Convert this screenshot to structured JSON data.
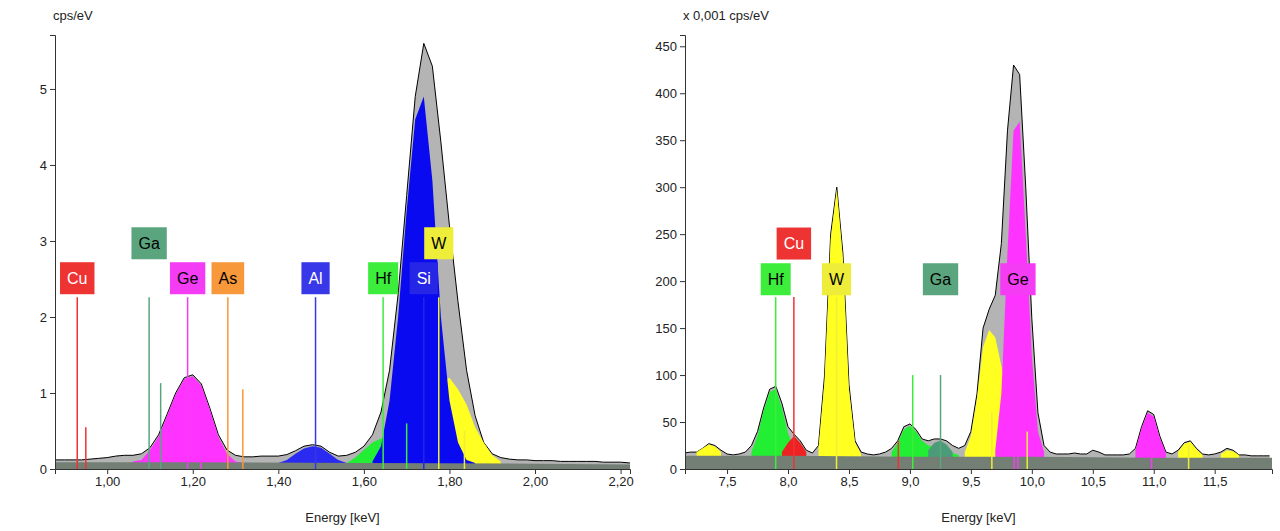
{
  "chart_data": [
    {
      "type": "area",
      "y_label": "cps/eV",
      "x_label": "Energy [keV]",
      "xlim": [
        0.878,
        2.222
      ],
      "xticks": [
        {
          "value": 1.0,
          "label": "1,00"
        },
        {
          "value": 1.2,
          "label": "1,20"
        },
        {
          "value": 1.4,
          "label": "1,40"
        },
        {
          "value": 1.6,
          "label": "1,60"
        },
        {
          "value": 1.8,
          "label": "1,80"
        },
        {
          "value": 2.0,
          "label": "2,00"
        },
        {
          "value": 2.2,
          "label": "2,20"
        }
      ],
      "ylim": [
        0,
        5.71
      ],
      "yticks": [
        0,
        1,
        2,
        3,
        4,
        5
      ],
      "series": [
        {
          "color": "#b4b4b4",
          "line_style": "solid",
          "x": [
            0.88,
            0.9,
            0.92,
            0.94,
            0.96,
            0.98,
            1.0,
            1.02,
            1.04,
            1.06,
            1.08,
            1.1,
            1.12,
            1.14,
            1.16,
            1.18,
            1.2,
            1.22,
            1.24,
            1.26,
            1.28,
            1.3,
            1.32,
            1.34,
            1.36,
            1.38,
            1.4,
            1.42,
            1.44,
            1.46,
            1.48,
            1.5,
            1.52,
            1.54,
            1.56,
            1.58,
            1.6,
            1.62,
            1.64,
            1.66,
            1.68,
            1.7,
            1.72,
            1.74,
            1.76,
            1.78,
            1.8,
            1.82,
            1.84,
            1.86,
            1.88,
            1.9,
            1.92,
            1.94,
            1.96,
            1.98,
            2.0,
            2.02,
            2.04,
            2.06,
            2.08,
            2.1,
            2.12,
            2.14,
            2.16,
            2.18,
            2.2,
            2.22,
            2.24
          ],
          "values": [
            0.12,
            0.12,
            0.12,
            0.12,
            0.13,
            0.14,
            0.15,
            0.17,
            0.18,
            0.18,
            0.2,
            0.28,
            0.45,
            0.72,
            1.0,
            1.2,
            1.24,
            1.12,
            0.8,
            0.45,
            0.25,
            0.18,
            0.16,
            0.16,
            0.17,
            0.17,
            0.17,
            0.19,
            0.24,
            0.3,
            0.32,
            0.3,
            0.22,
            0.17,
            0.18,
            0.22,
            0.3,
            0.45,
            0.75,
            1.3,
            2.3,
            3.6,
            4.9,
            5.6,
            5.3,
            4.3,
            3.2,
            2.2,
            1.3,
            0.7,
            0.35,
            0.2,
            0.15,
            0.13,
            0.12,
            0.12,
            0.11,
            0.11,
            0.11,
            0.1,
            0.1,
            0.1,
            0.1,
            0.1,
            0.09,
            0.09,
            0.09,
            0.08,
            0.08
          ]
        },
        {
          "color": "#ff33ff",
          "x": [
            1.06,
            1.08,
            1.1,
            1.12,
            1.14,
            1.16,
            1.18,
            1.2,
            1.22,
            1.24,
            1.26,
            1.28,
            1.3,
            1.32
          ],
          "values": [
            0.1,
            0.12,
            0.25,
            0.42,
            0.7,
            0.98,
            1.18,
            1.22,
            1.1,
            0.78,
            0.42,
            0.2,
            0.1,
            0.08
          ]
        },
        {
          "color": "#2a2af0",
          "x": [
            1.4,
            1.42,
            1.44,
            1.46,
            1.48,
            1.5,
            1.52,
            1.54,
            1.56
          ],
          "values": [
            0.08,
            0.12,
            0.2,
            0.27,
            0.3,
            0.28,
            0.2,
            0.12,
            0.08
          ]
        },
        {
          "color": "#22ee33",
          "x": [
            1.56,
            1.58,
            1.6,
            1.62,
            1.64,
            1.66,
            1.68,
            1.7,
            1.72
          ],
          "values": [
            0.08,
            0.15,
            0.25,
            0.35,
            0.4,
            0.4,
            0.3,
            0.15,
            0.08
          ]
        },
        {
          "color": "#ffff22",
          "x": [
            1.7,
            1.72,
            1.74,
            1.76,
            1.78,
            1.8,
            1.82,
            1.84,
            1.86,
            1.88,
            1.9,
            1.92
          ],
          "values": [
            0.1,
            0.3,
            0.6,
            0.9,
            1.15,
            1.2,
            1.05,
            0.85,
            0.55,
            0.35,
            0.18,
            0.1
          ]
        },
        {
          "color": "#0a0af0",
          "x": [
            1.62,
            1.64,
            1.66,
            1.68,
            1.7,
            1.72,
            1.74,
            1.76,
            1.78,
            1.8,
            1.82,
            1.84,
            1.86
          ],
          "values": [
            0.1,
            0.3,
            0.9,
            2.0,
            3.4,
            4.6,
            4.9,
            3.8,
            2.0,
            0.9,
            0.35,
            0.12,
            0.08
          ]
        },
        {
          "color": "#737f75",
          "x": [
            0.88,
            1.2,
            1.6,
            2.0,
            2.24
          ],
          "values": [
            0.09,
            0.09,
            0.08,
            0.07,
            0.06
          ]
        }
      ],
      "annotations": [
        {
          "text": "Cu",
          "x": 0.93,
          "y": 2.51,
          "color": "#ee3333",
          "line_x": [
            0.93,
            0.95
          ],
          "line_y": [
            2.26,
            0.55
          ]
        },
        {
          "text": "Ga",
          "x": 1.098,
          "y": 2.97,
          "color": "#5aa57e",
          "line_x": [
            1.098,
            1.125
          ],
          "line_y": [
            2.26,
            1.13
          ]
        },
        {
          "text": "Ge",
          "x": 1.188,
          "y": 2.51,
          "color": "#f43cf4",
          "line_x": [
            1.188,
            1.219
          ],
          "line_y": [
            2.26,
            0.2
          ]
        },
        {
          "text": "As",
          "x": 1.282,
          "y": 2.51,
          "color": "#f7983a",
          "line_x": [
            1.282,
            1.317
          ],
          "line_y": [
            2.26,
            1.05
          ]
        },
        {
          "text": "Al",
          "x": 1.487,
          "y": 2.51,
          "color": "#3838e8",
          "line_x": [
            1.487
          ],
          "line_y": [
            2.26
          ]
        },
        {
          "text": "Hf",
          "x": 1.645,
          "y": 2.51,
          "color": "#3ced3c",
          "line_x": [
            1.645,
            1.7
          ],
          "line_y": [
            2.26,
            0.6
          ]
        },
        {
          "text": "Si",
          "x": 1.74,
          "y": 2.51,
          "color": "#2626e6",
          "line_x": [
            1.74
          ],
          "line_y": [
            2.26
          ]
        },
        {
          "text": "W",
          "x": 1.775,
          "y": 2.97,
          "color": "#eeee3a",
          "line_x": [
            1.775,
            1.835
          ],
          "line_y": [
            2.26,
            0.5
          ]
        }
      ]
    },
    {
      "type": "area",
      "y_label": "x 0,001 cps/eV",
      "x_label": "Energy [keV]",
      "xlim": [
        7.155,
        11.97
      ],
      "xticks": [
        {
          "value": 7.5,
          "label": "7,5"
        },
        {
          "value": 8.0,
          "label": "8,0"
        },
        {
          "value": 8.5,
          "label": "8,5"
        },
        {
          "value": 9.0,
          "label": "9,0"
        },
        {
          "value": 9.5,
          "label": "9,5"
        },
        {
          "value": 10.0,
          "label": "10,0"
        },
        {
          "value": 10.5,
          "label": "10,5"
        },
        {
          "value": 11.0,
          "label": "11,0"
        },
        {
          "value": 11.5,
          "label": "11,5"
        }
      ],
      "ylim": [
        0,
        462
      ],
      "yticks": [
        0,
        50,
        100,
        150,
        200,
        250,
        300,
        350,
        400,
        450
      ],
      "series": [
        {
          "color": "#b4b4b4",
          "line_style": "solid",
          "x": [
            7.15,
            7.2,
            7.25,
            7.3,
            7.35,
            7.4,
            7.45,
            7.5,
            7.55,
            7.6,
            7.65,
            7.7,
            7.75,
            7.8,
            7.85,
            7.9,
            7.95,
            8.0,
            8.05,
            8.1,
            8.15,
            8.2,
            8.25,
            8.3,
            8.35,
            8.4,
            8.45,
            8.5,
            8.55,
            8.6,
            8.65,
            8.7,
            8.75,
            8.8,
            8.85,
            8.9,
            8.95,
            9.0,
            9.05,
            9.1,
            9.15,
            9.2,
            9.25,
            9.3,
            9.35,
            9.4,
            9.45,
            9.5,
            9.55,
            9.6,
            9.65,
            9.7,
            9.75,
            9.8,
            9.85,
            9.9,
            9.95,
            10.0,
            10.05,
            10.1,
            10.15,
            10.2,
            10.25,
            10.3,
            10.35,
            10.4,
            10.45,
            10.5,
            10.55,
            10.6,
            10.65,
            10.7,
            10.75,
            10.8,
            10.85,
            10.9,
            10.95,
            11.0,
            11.05,
            11.1,
            11.15,
            11.2,
            11.25,
            11.3,
            11.35,
            11.4,
            11.45,
            11.5,
            11.55,
            11.6,
            11.65,
            11.7,
            11.75,
            11.8,
            11.85,
            11.9,
            11.95
          ],
          "values": [
            17,
            18,
            18,
            22,
            27,
            25,
            20,
            16,
            15,
            16,
            18,
            25,
            40,
            65,
            85,
            88,
            70,
            45,
            37,
            30,
            20,
            17,
            25,
            100,
            250,
            300,
            230,
            90,
            30,
            18,
            16,
            15,
            16,
            18,
            22,
            30,
            45,
            48,
            42,
            32,
            30,
            32,
            32,
            30,
            25,
            22,
            25,
            40,
            80,
            150,
            170,
            185,
            240,
            360,
            430,
            420,
            300,
            160,
            60,
            25,
            18,
            16,
            16,
            16,
            17,
            16,
            16,
            20,
            18,
            15,
            15,
            15,
            15,
            16,
            22,
            45,
            62,
            58,
            35,
            18,
            16,
            20,
            28,
            30,
            22,
            16,
            15,
            16,
            18,
            22,
            20,
            15,
            15,
            14,
            14,
            14,
            14
          ]
        },
        {
          "color": "#22ee33",
          "x": [
            7.7,
            7.75,
            7.8,
            7.85,
            7.9,
            7.95,
            8.0,
            8.05,
            8.1
          ],
          "values": [
            18,
            35,
            62,
            82,
            85,
            65,
            38,
            22,
            15
          ]
        },
        {
          "color": "#22ee33",
          "x": [
            8.85,
            8.9,
            8.95,
            9.0,
            9.05,
            9.1,
            9.15,
            9.2,
            9.25,
            9.3,
            9.35,
            9.4
          ],
          "values": [
            18,
            28,
            42,
            46,
            40,
            30,
            25,
            24,
            22,
            20,
            17,
            15
          ]
        },
        {
          "color": "#ee2222",
          "x": [
            7.95,
            8.0,
            8.05,
            8.1,
            8.15
          ],
          "values": [
            18,
            28,
            35,
            28,
            18
          ]
        },
        {
          "color": "#4a9c78",
          "x": [
            9.15,
            9.2,
            9.25,
            9.3,
            9.35
          ],
          "values": [
            20,
            28,
            30,
            26,
            18
          ]
        },
        {
          "color": "#ffff22",
          "x": [
            7.25,
            7.3,
            7.35,
            7.4,
            7.45
          ],
          "values": [
            18,
            22,
            26,
            24,
            18
          ]
        },
        {
          "color": "#ffff22",
          "x": [
            8.25,
            8.3,
            8.35,
            8.4,
            8.45,
            8.5,
            8.55,
            8.6
          ],
          "values": [
            22,
            95,
            245,
            298,
            225,
            85,
            28,
            16
          ]
        },
        {
          "color": "#ffff22",
          "x": [
            9.45,
            9.5,
            9.55,
            9.6,
            9.65,
            9.7,
            9.75,
            9.8,
            9.85,
            9.9,
            9.95,
            10.0,
            10.05,
            10.1
          ],
          "values": [
            18,
            35,
            75,
            130,
            148,
            140,
            110,
            80,
            70,
            70,
            60,
            45,
            25,
            16
          ]
        },
        {
          "color": "#ffff22",
          "x": [
            11.2,
            11.25,
            11.3,
            11.35,
            11.4
          ],
          "values": [
            18,
            27,
            29,
            21,
            15
          ]
        },
        {
          "color": "#ffff22",
          "x": [
            11.55,
            11.6,
            11.65,
            11.7
          ],
          "values": [
            16,
            20,
            19,
            15
          ]
        },
        {
          "color": "#ff33ff",
          "x": [
            9.7,
            9.75,
            9.8,
            9.85,
            9.9,
            9.95,
            10.0,
            10.05,
            10.1
          ],
          "values": [
            20,
            80,
            230,
            360,
            370,
            250,
            120,
            40,
            18
          ]
        },
        {
          "color": "#ff33ff",
          "x": [
            10.85,
            10.9,
            10.95,
            11.0,
            11.05,
            11.1
          ],
          "values": [
            20,
            43,
            60,
            56,
            33,
            17
          ]
        },
        {
          "color": "#737f75",
          "x": [
            7.15,
            8.0,
            9.0,
            10.0,
            11.0,
            11.97
          ],
          "values": [
            14,
            14,
            13,
            13,
            12,
            12
          ]
        }
      ],
      "annotations": [
        {
          "text": "Hf",
          "x": 7.899,
          "y": 202,
          "color": "#3ced3c",
          "line_x": [
            7.899,
            9.023
          ],
          "line_y": [
            183,
            100
          ]
        },
        {
          "text": "Cu",
          "x": 8.048,
          "y": 240,
          "color": "#ee3333",
          "line_x": [
            8.048,
            8.905
          ],
          "line_y": [
            183,
            30
          ]
        },
        {
          "text": "W",
          "x": 8.398,
          "y": 202,
          "color": "#eeee3a",
          "line_x": [
            8.398,
            9.672,
            9.962,
            11.286
          ],
          "line_y": [
            183,
            60,
            40,
            25
          ]
        },
        {
          "text": "Ga",
          "x": 9.251,
          "y": 202,
          "color": "#5aa57e",
          "line_x": [
            9.251
          ],
          "line_y": [
            100
          ]
        },
        {
          "text": "Ge",
          "x": 9.886,
          "y": 202,
          "color": "#f43cf4",
          "line_x": [
            9.886,
            9.855,
            10.982
          ],
          "line_y": [
            183,
            100,
            20
          ]
        }
      ]
    }
  ]
}
